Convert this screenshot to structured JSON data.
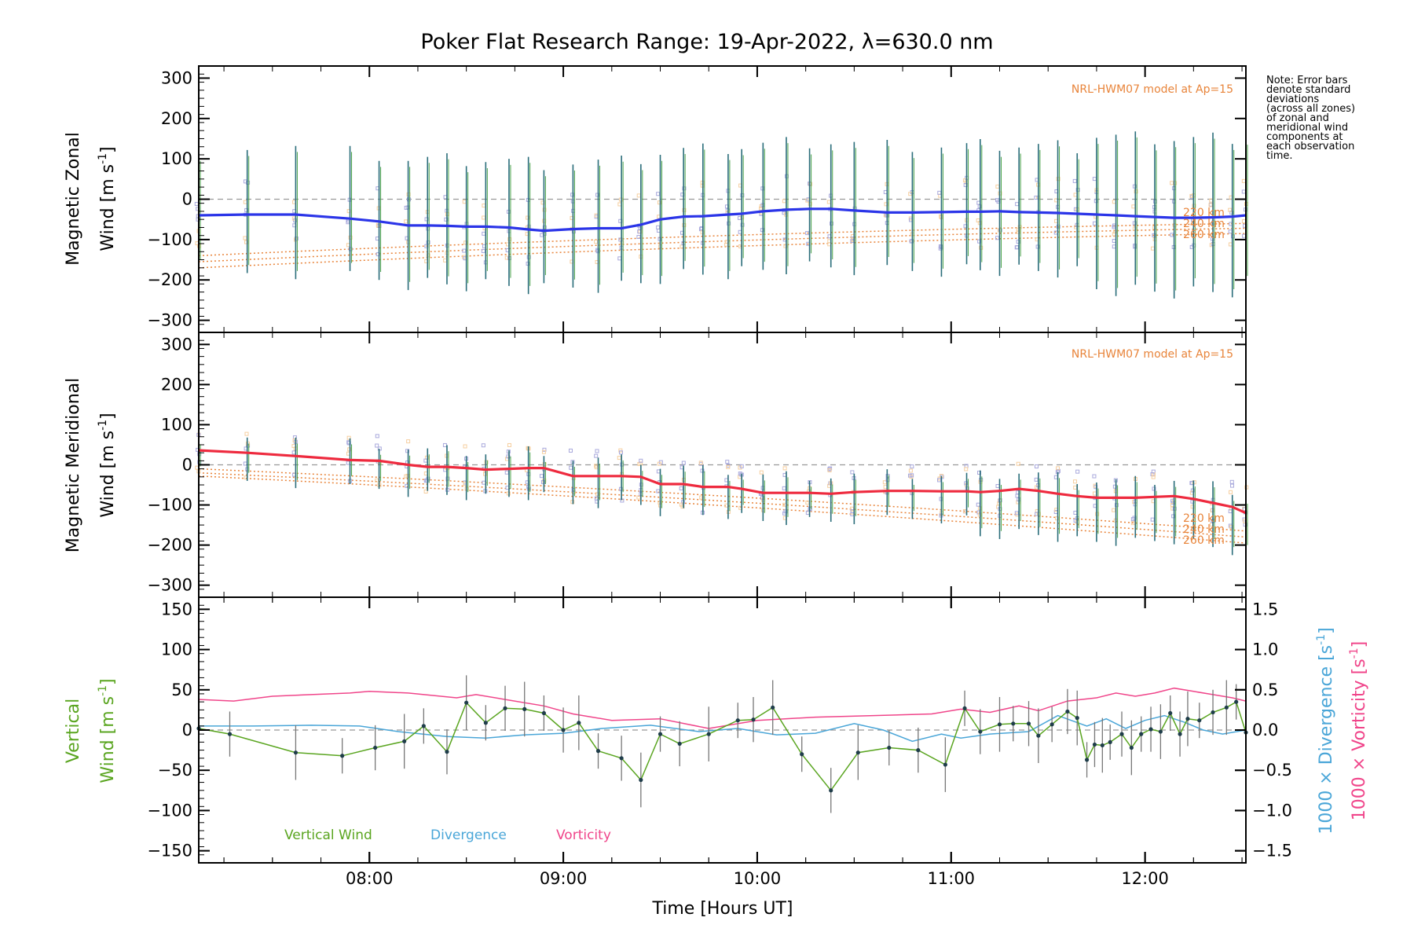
{
  "title": "Poker Flat Research Range: 19-Apr-2022, λ=630.0 nm",
  "note_lines": [
    "Note: Error bars",
    "denote standard",
    "deviations",
    "(across all zones)",
    "of zonal and",
    "meridional wind",
    "components at",
    "each observation",
    "time."
  ],
  "model_label": "NRL-HWM07 model at Ap=15",
  "altitude_labels": [
    "220 km",
    "240 km",
    "260 km"
  ],
  "xlabel": "Time [Hours UT]",
  "xtick_labels": [
    "08:00",
    "09:00",
    "10:00",
    "11:00",
    "12:00"
  ],
  "colors": {
    "zonal": "#2b35e8",
    "meridional": "#ee2a3e",
    "vertical": "#5aa520",
    "divergence": "#4aa6d8",
    "vorticity": "#f0458a",
    "model": "#e8843a",
    "samples_lavender": "#a9a9dc",
    "samples_peach": "#f6cfa0",
    "errbar": "#2a6d7a"
  },
  "chart_data": [
    {
      "type": "line",
      "title": "Magnetic Zonal Wind",
      "ylabel_line1": "Magnetic Zonal",
      "ylabel_line2": "Wind [m s",
      "ylabel_sup": "-1",
      "ylabel_close": "]",
      "ylim": [
        -330,
        330
      ],
      "yticks": [
        -300,
        -200,
        -100,
        0,
        100,
        200,
        300
      ],
      "ytick_labels": [
        "−300",
        "−200",
        "−100",
        "0",
        "100",
        "200",
        "300"
      ],
      "xlim": [
        7.12,
        12.52
      ],
      "x": [
        7.12,
        7.37,
        7.62,
        7.9,
        8.05,
        8.2,
        8.3,
        8.4,
        8.5,
        8.6,
        8.72,
        8.82,
        8.9,
        9.05,
        9.18,
        9.3,
        9.4,
        9.5,
        9.62,
        9.72,
        9.85,
        9.92,
        10.03,
        10.15,
        10.27,
        10.38,
        10.5,
        10.67,
        10.8,
        10.95,
        11.08,
        11.15,
        11.25,
        11.35,
        11.45,
        11.55,
        11.65,
        11.75,
        11.85,
        11.95,
        12.05,
        12.15,
        12.25,
        12.35,
        12.45,
        12.52
      ],
      "series": [
        {
          "name": "Zonal Wind",
          "values": [
            -40,
            -38,
            -38,
            -48,
            -55,
            -65,
            -65,
            -66,
            -68,
            -68,
            -70,
            -75,
            -78,
            -74,
            -72,
            -72,
            -63,
            -50,
            -43,
            -42,
            -38,
            -36,
            -30,
            -26,
            -24,
            -24,
            -28,
            -33,
            -33,
            -32,
            -31,
            -31,
            -30,
            -32,
            -33,
            -34,
            -36,
            -38,
            -40,
            -42,
            -44,
            -46,
            -46,
            -45,
            -43,
            -40
          ]
        }
      ],
      "model_series": [
        {
          "name": "220 km",
          "values": [
            -140,
            -60
          ]
        },
        {
          "name": "240 km",
          "values": [
            -155,
            -72
          ]
        },
        {
          "name": "260 km",
          "values": [
            -170,
            -85
          ]
        }
      ]
    },
    {
      "type": "line",
      "title": "Magnetic Meridional Wind",
      "ylabel_line1": "Magnetic Meridional",
      "ylabel_line2": "Wind [m s",
      "ylabel_sup": "-1",
      "ylabel_close": "]",
      "ylim": [
        -330,
        330
      ],
      "yticks": [
        -300,
        -200,
        -100,
        0,
        100,
        200,
        300
      ],
      "ytick_labels": [
        "−300",
        "−200",
        "−100",
        "0",
        "100",
        "200",
        "300"
      ],
      "xlim": [
        7.12,
        12.52
      ],
      "x": [
        7.12,
        7.37,
        7.62,
        7.9,
        8.05,
        8.2,
        8.3,
        8.4,
        8.5,
        8.6,
        8.72,
        8.82,
        8.9,
        9.05,
        9.18,
        9.3,
        9.4,
        9.5,
        9.62,
        9.72,
        9.85,
        9.92,
        10.03,
        10.15,
        10.27,
        10.38,
        10.5,
        10.67,
        10.8,
        10.95,
        11.08,
        11.15,
        11.25,
        11.35,
        11.45,
        11.55,
        11.65,
        11.75,
        11.85,
        11.95,
        12.05,
        12.15,
        12.25,
        12.35,
        12.45,
        12.52
      ],
      "series": [
        {
          "name": "Meridional Wind",
          "values": [
            36,
            30,
            22,
            12,
            10,
            0,
            -5,
            -5,
            -8,
            -12,
            -10,
            -8,
            -8,
            -28,
            -28,
            -28,
            -30,
            -48,
            -48,
            -55,
            -55,
            -60,
            -70,
            -70,
            -70,
            -72,
            -68,
            -65,
            -65,
            -66,
            -66,
            -68,
            -65,
            -60,
            -65,
            -72,
            -78,
            -82,
            -82,
            -82,
            -80,
            -78,
            -85,
            -95,
            -105,
            -120
          ]
        }
      ],
      "model_series": [
        {
          "name": "220 km",
          "values": [
            -10,
            -165
          ]
        },
        {
          "name": "240 km",
          "values": [
            -20,
            -180
          ]
        },
        {
          "name": "260 km",
          "values": [
            -28,
            -195
          ]
        }
      ]
    },
    {
      "type": "line",
      "title": "Vertical Wind, Divergence, Vorticity",
      "ylabel_left1": "Vertical",
      "ylabel_left2": "Wind [m s",
      "ylabel_right1": "1000 × Divergence [s",
      "ylabel_right2": "1000 × Vorticity [s",
      "ylabel_sup": "-1",
      "ylabel_close": "]",
      "ylim": [
        -165,
        165
      ],
      "yticks": [
        -150,
        -100,
        -50,
        0,
        50,
        100,
        150
      ],
      "ytick_labels": [
        "−150",
        "−100",
        "−50",
        "0",
        "50",
        "100",
        "150"
      ],
      "y2lim": [
        -1.65,
        1.65
      ],
      "y2ticks": [
        -1.5,
        -1.0,
        -0.5,
        0.0,
        0.5,
        1.0,
        1.5
      ],
      "y2tick_labels": [
        "−1.5",
        "−1.0",
        "−0.5",
        "0.0",
        "0.5",
        "1.0",
        "1.5"
      ],
      "xlim": [
        7.12,
        12.52
      ],
      "legend": [
        "Vertical Wind",
        "Divergence",
        "Vorticity"
      ],
      "series": [
        {
          "name": "Vertical Wind",
          "x": [
            7.12,
            7.28,
            7.62,
            7.86,
            8.03,
            8.18,
            8.28,
            8.4,
            8.5,
            8.6,
            8.7,
            8.8,
            8.9,
            9.0,
            9.08,
            9.18,
            9.3,
            9.4,
            9.5,
            9.6,
            9.75,
            9.9,
            9.98,
            10.08,
            10.23,
            10.38,
            10.52,
            10.68,
            10.83,
            10.97,
            11.07,
            11.15,
            11.25,
            11.32,
            11.4,
            11.45,
            11.52,
            11.6,
            11.65,
            11.7,
            11.74,
            11.78,
            11.82,
            11.88,
            11.93,
            11.98,
            12.03,
            12.08,
            12.13,
            12.18,
            12.22,
            12.28,
            12.35,
            12.42,
            12.47,
            12.52
          ],
          "values": [
            2,
            -5,
            -28,
            -32,
            -22,
            -14,
            5,
            -27,
            34,
            9,
            27,
            26,
            21,
            0,
            9,
            -26,
            -35,
            -62,
            -5,
            -17,
            -5,
            12,
            13,
            28,
            -30,
            -75,
            -28,
            -22,
            -25,
            -43,
            27,
            -2,
            7,
            8,
            8,
            -7,
            7,
            23,
            15,
            -37,
            -18,
            -19,
            -15,
            -5,
            -22,
            -5,
            1,
            -2,
            21,
            -5,
            14,
            12,
            22,
            28,
            35,
            -3
          ]
        },
        {
          "name": "1000 × Divergence",
          "x": [
            7.12,
            7.4,
            7.7,
            7.95,
            8.15,
            8.4,
            8.6,
            8.8,
            9.0,
            9.2,
            9.45,
            9.7,
            9.9,
            10.1,
            10.3,
            10.5,
            10.65,
            10.8,
            10.95,
            11.05,
            11.2,
            11.4,
            11.55,
            11.7,
            11.8,
            11.9,
            12.0,
            12.1,
            12.2,
            12.3,
            12.4,
            12.52
          ],
          "values": [
            0.05,
            0.05,
            0.06,
            0.05,
            -0.02,
            -0.08,
            -0.1,
            -0.06,
            -0.04,
            0.02,
            0.06,
            -0.02,
            0.02,
            -0.06,
            -0.04,
            0.08,
            0.0,
            -0.14,
            -0.05,
            -0.1,
            -0.05,
            -0.02,
            0.18,
            0.05,
            0.14,
            0.02,
            0.12,
            0.18,
            0.1,
            0.0,
            -0.05,
            0.0
          ]
        },
        {
          "name": "1000 × Vorticity",
          "x": [
            7.12,
            7.3,
            7.5,
            7.7,
            7.9,
            8.0,
            8.2,
            8.45,
            8.55,
            8.7,
            8.9,
            9.05,
            9.25,
            9.5,
            9.75,
            10.0,
            10.3,
            10.6,
            10.9,
            11.05,
            11.2,
            11.35,
            11.45,
            11.6,
            11.75,
            11.85,
            11.95,
            12.05,
            12.15,
            12.25,
            12.35,
            12.45,
            12.52
          ],
          "values": [
            0.38,
            0.36,
            0.42,
            0.44,
            0.46,
            0.48,
            0.46,
            0.4,
            0.44,
            0.38,
            0.3,
            0.2,
            0.12,
            0.14,
            0.02,
            0.12,
            0.16,
            0.18,
            0.2,
            0.26,
            0.22,
            0.3,
            0.24,
            0.36,
            0.4,
            0.46,
            0.42,
            0.46,
            0.52,
            0.48,
            0.44,
            0.4,
            0.36
          ]
        }
      ]
    }
  ]
}
